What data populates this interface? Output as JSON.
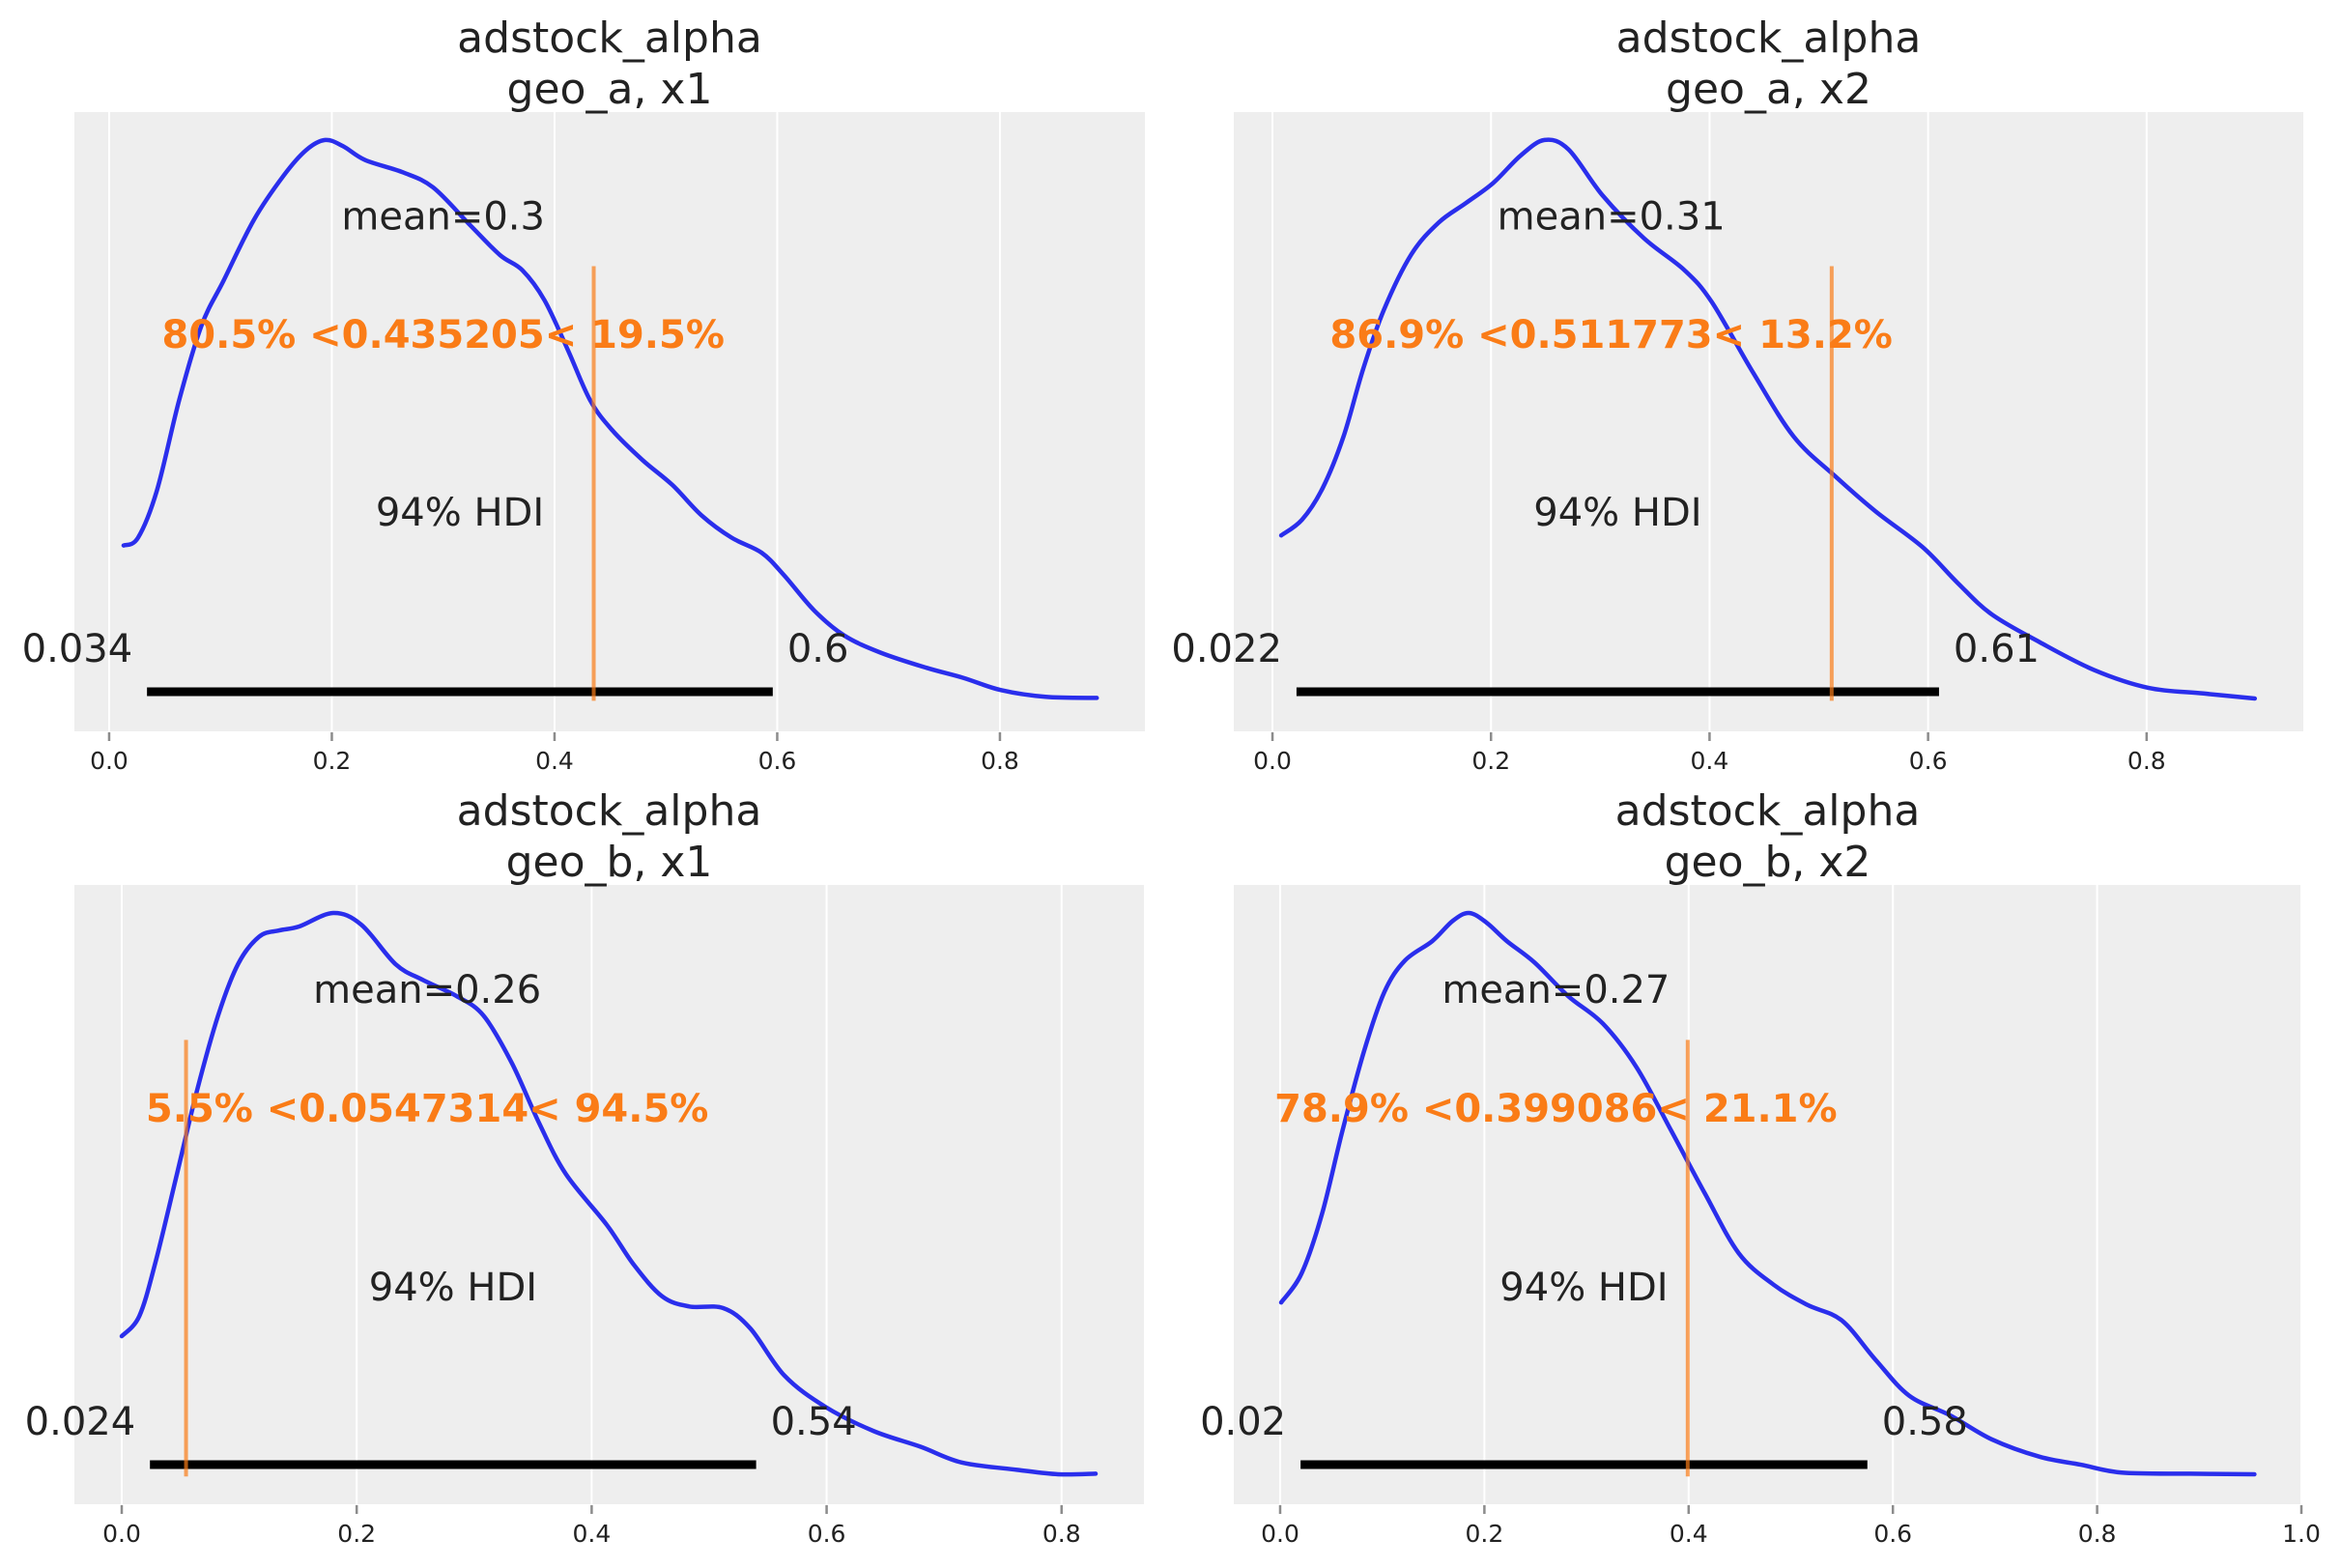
{
  "colors": {
    "figure_background": "#ffffff",
    "axes_background": "#eeeeee",
    "grid": "#ffffff",
    "kde": "#2a2eec",
    "ref": "#fa7c17",
    "hdi_bar": "#000000",
    "text": "#222222",
    "tick_mark": "#8c8c8c"
  },
  "chart_data": [
    {
      "type": "line",
      "title": "adstock_alpha",
      "subtitle": "geo_a, x1",
      "xlim": [
        -0.0312,
        0.9302
      ],
      "ylim": [
        -0.0588,
        1.05
      ],
      "grid": true,
      "xticks": [
        0.0,
        0.2,
        0.4,
        0.6,
        0.8
      ],
      "xtick_labels": [
        "0.0",
        "0.2",
        "0.4",
        "0.6",
        "0.8"
      ],
      "density": {
        "x": [
          0.013,
          0.026,
          0.043,
          0.063,
          0.083,
          0.103,
          0.13,
          0.157,
          0.177,
          0.194,
          0.21,
          0.23,
          0.264,
          0.291,
          0.324,
          0.351,
          0.371,
          0.391,
          0.412,
          0.432,
          0.452,
          0.479,
          0.506,
          0.532,
          0.559,
          0.586,
          0.606,
          0.633,
          0.66,
          0.693,
          0.734,
          0.767,
          0.801,
          0.841,
          0.887
        ],
        "y": [
          0.274,
          0.288,
          0.373,
          0.535,
          0.668,
          0.749,
          0.857,
          0.937,
          0.982,
          1.0,
          0.989,
          0.964,
          0.942,
          0.915,
          0.848,
          0.794,
          0.767,
          0.713,
          0.624,
          0.534,
          0.48,
          0.427,
          0.382,
          0.328,
          0.288,
          0.261,
          0.221,
          0.158,
          0.113,
          0.082,
          0.055,
          0.037,
          0.015,
          0.003,
          0.001
        ]
      },
      "point_estimate": {
        "value": 0.3,
        "label": "mean=0.3"
      },
      "hdi": {
        "prob_label": "94% HDI",
        "low": 0.034,
        "high": 0.596,
        "low_label": "0.034",
        "high_label": "0.6"
      },
      "ref": {
        "value": 0.435205,
        "label": "80.5% <0.435205< 19.5%"
      }
    },
    {
      "type": "line",
      "title": "adstock_alpha",
      "subtitle": "geo_a, x2",
      "xlim": [
        -0.0354,
        0.9434
      ],
      "ylim": [
        -0.0588,
        1.05
      ],
      "grid": true,
      "xticks": [
        0.0,
        0.2,
        0.4,
        0.6,
        0.8
      ],
      "xtick_labels": [
        "0.0",
        "0.2",
        "0.4",
        "0.6",
        "0.8"
      ],
      "density": {
        "x": [
          0.008,
          0.027,
          0.046,
          0.065,
          0.083,
          0.102,
          0.127,
          0.152,
          0.177,
          0.202,
          0.227,
          0.249,
          0.271,
          0.302,
          0.34,
          0.377,
          0.402,
          0.44,
          0.477,
          0.515,
          0.552,
          0.595,
          0.627,
          0.658,
          0.702,
          0.752,
          0.802,
          0.852,
          0.899
        ],
        "y": [
          0.292,
          0.32,
          0.377,
          0.469,
          0.59,
          0.696,
          0.795,
          0.852,
          0.887,
          0.923,
          0.972,
          1.0,
          0.983,
          0.901,
          0.824,
          0.767,
          0.71,
          0.583,
          0.469,
          0.398,
          0.335,
          0.271,
          0.207,
          0.151,
          0.101,
          0.051,
          0.019,
          0.009,
          0.0
        ]
      },
      "point_estimate": {
        "value": 0.31,
        "label": "mean=0.31"
      },
      "hdi": {
        "prob_label": "94% HDI",
        "low": 0.022,
        "high": 0.61,
        "low_label": "0.022",
        "high_label": "0.61"
      },
      "ref": {
        "value": 0.511773,
        "label": "86.9% <0.511773< 13.2%"
      }
    },
    {
      "type": "line",
      "title": "adstock_alpha",
      "subtitle": "geo_b, x1",
      "xlim": [
        -0.0403,
        0.8701
      ],
      "ylim": [
        -0.0534,
        1.05
      ],
      "grid": true,
      "xticks": [
        0.0,
        0.2,
        0.4,
        0.6,
        0.8
      ],
      "xtick_labels": [
        "0.0",
        "0.2",
        "0.4",
        "0.6",
        "0.8"
      ],
      "density": {
        "x": [
          0.0,
          0.015,
          0.029,
          0.047,
          0.064,
          0.082,
          0.099,
          0.117,
          0.134,
          0.151,
          0.18,
          0.204,
          0.233,
          0.256,
          0.285,
          0.308,
          0.332,
          0.355,
          0.378,
          0.413,
          0.436,
          0.46,
          0.483,
          0.512,
          0.535,
          0.564,
          0.599,
          0.64,
          0.68,
          0.715,
          0.762,
          0.797,
          0.829
        ],
        "y": [
          0.246,
          0.282,
          0.38,
          0.535,
          0.683,
          0.817,
          0.909,
          0.958,
          0.969,
          0.976,
          1.0,
          0.979,
          0.909,
          0.881,
          0.852,
          0.817,
          0.733,
          0.627,
          0.535,
          0.444,
          0.373,
          0.317,
          0.299,
          0.296,
          0.26,
          0.176,
          0.12,
          0.077,
          0.049,
          0.021,
          0.008,
          0.0,
          0.001
        ]
      },
      "point_estimate": {
        "value": 0.26,
        "label": "mean=0.26"
      },
      "hdi": {
        "prob_label": "94% HDI",
        "low": 0.024,
        "high": 0.54,
        "low_label": "0.024",
        "high_label": "0.54"
      },
      "ref": {
        "value": 0.0547314,
        "label": "5.5% <0.0547314< 94.5%"
      }
    },
    {
      "type": "line",
      "title": "adstock_alpha",
      "subtitle": "geo_b, x2",
      "xlim": [
        -0.0454,
        1.0
      ],
      "ylim": [
        -0.0534,
        1.05
      ],
      "grid": true,
      "xticks": [
        0.0,
        0.2,
        0.4,
        0.6,
        0.8,
        1.0
      ],
      "xtick_labels": [
        "0.0",
        "0.2",
        "0.4",
        "0.6",
        "0.8",
        "1.0"
      ],
      "density": {
        "x": [
          0.001,
          0.021,
          0.041,
          0.061,
          0.082,
          0.102,
          0.122,
          0.149,
          0.169,
          0.185,
          0.202,
          0.222,
          0.249,
          0.282,
          0.316,
          0.349,
          0.383,
          0.416,
          0.449,
          0.483,
          0.516,
          0.55,
          0.583,
          0.616,
          0.656,
          0.697,
          0.744,
          0.784,
          0.824,
          0.891,
          0.954
        ],
        "y": [
          0.306,
          0.358,
          0.464,
          0.612,
          0.753,
          0.859,
          0.915,
          0.95,
          0.986,
          1.0,
          0.983,
          0.95,
          0.912,
          0.852,
          0.803,
          0.725,
          0.612,
          0.5,
          0.394,
          0.338,
          0.302,
          0.274,
          0.204,
          0.14,
          0.105,
          0.062,
          0.031,
          0.017,
          0.003,
          0.001,
          0.0
        ]
      },
      "point_estimate": {
        "value": 0.27,
        "label": "mean=0.27"
      },
      "hdi": {
        "prob_label": "94% HDI",
        "low": 0.02,
        "high": 0.575,
        "low_label": "0.02",
        "high_label": "0.58"
      },
      "ref": {
        "value": 0.399086,
        "label": "78.9% <0.399086< 21.1%"
      }
    }
  ]
}
